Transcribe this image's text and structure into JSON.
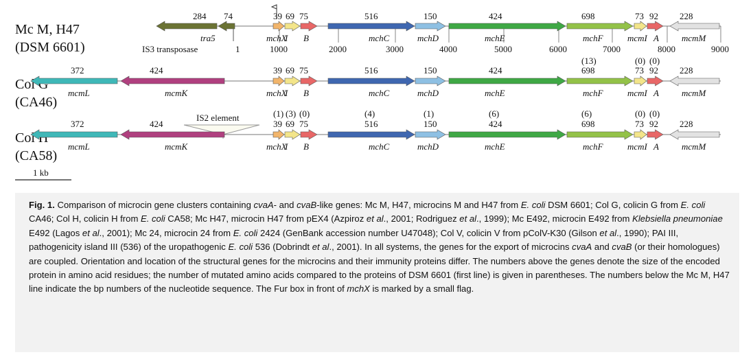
{
  "rows": [
    {
      "name": "Mc M, H47",
      "strain": "(DSM 6601)",
      "genes": [
        {
          "label": "tra5",
          "size": "284",
          "mut": ""
        },
        {
          "label": "",
          "size": "74",
          "mut": ""
        },
        {
          "label": "mchX",
          "size": "39",
          "mut": ""
        },
        {
          "label": "I",
          "size": "69",
          "mut": ""
        },
        {
          "label": "B",
          "size": "75",
          "mut": ""
        },
        {
          "label": "mchC",
          "size": "516",
          "mut": ""
        },
        {
          "label": "mchD",
          "size": "150",
          "mut": ""
        },
        {
          "label": "mchE",
          "size": "424",
          "mut": ""
        },
        {
          "label": "mchF",
          "size": "698",
          "mut": ""
        },
        {
          "label": "mcmI",
          "size": "73",
          "mut": ""
        },
        {
          "label": "A",
          "size": "92",
          "mut": ""
        },
        {
          "label": "mcmM",
          "size": "228",
          "mut": ""
        }
      ],
      "annotations": {
        "is3": "IS3 transposase",
        "one": "1"
      },
      "axis_ticks": [
        "1000",
        "2000",
        "3000",
        "4000",
        "5000",
        "6000",
        "7000",
        "8000",
        "9000"
      ]
    },
    {
      "name": "Col G",
      "strain": "(CA46)",
      "genes": [
        {
          "label": "mcmL",
          "size": "372",
          "mut": ""
        },
        {
          "label": "mcmK",
          "size": "424",
          "mut": ""
        },
        {
          "label": "mchX",
          "size": "39",
          "mut": ""
        },
        {
          "label": "I",
          "size": "69",
          "mut": ""
        },
        {
          "label": "B",
          "size": "75",
          "mut": ""
        },
        {
          "label": "mchC",
          "size": "516",
          "mut": ""
        },
        {
          "label": "mchD",
          "size": "150",
          "mut": ""
        },
        {
          "label": "mchE",
          "size": "424",
          "mut": ""
        },
        {
          "label": "mchF",
          "size": "698",
          "mut": "(13)"
        },
        {
          "label": "mcmI",
          "size": "73",
          "mut": "(0)"
        },
        {
          "label": "A",
          "size": "92",
          "mut": "(0)"
        },
        {
          "label": "mcmM",
          "size": "228",
          "mut": ""
        }
      ]
    },
    {
      "name": "Col H",
      "strain": "(CA58)",
      "genes": [
        {
          "label": "mcmL",
          "size": "372",
          "mut": ""
        },
        {
          "label": "mcmK",
          "size": "424",
          "mut": ""
        },
        {
          "label": "mchX",
          "size": "39",
          "mut": "(1)"
        },
        {
          "label": "I",
          "size": "69",
          "mut": "(3)"
        },
        {
          "label": "B",
          "size": "75",
          "mut": "(0)"
        },
        {
          "label": "mchC",
          "size": "516",
          "mut": "(4)"
        },
        {
          "label": "mchD",
          "size": "150",
          "mut": "(1)"
        },
        {
          "label": "mchE",
          "size": "424",
          "mut": "(6)"
        },
        {
          "label": "mchF",
          "size": "698",
          "mut": "(6)"
        },
        {
          "label": "mcmI",
          "size": "73",
          "mut": "(0)"
        },
        {
          "label": "A",
          "size": "92",
          "mut": "(0)"
        },
        {
          "label": "mcmM",
          "size": "228",
          "mut": ""
        }
      ],
      "annotations": {
        "is2": "IS2 element"
      }
    }
  ],
  "scale_bar": "1 kb",
  "colors": {
    "tra5": "#6b7334",
    "mcmL": "#3fb8b8",
    "mcmK": "#b0407f",
    "mchX": "#f2b56b",
    "I": "#f3e58a",
    "B": "#e86767",
    "mchC": "#3f67b0",
    "mchD": "#8ec0e3",
    "mchE": "#3fa845",
    "mchF": "#93c248",
    "mcmI": "#f3e58a",
    "A": "#e86767",
    "mcmM": "#e2e2e2"
  },
  "caption": {
    "fig_label": "Fig. 1.",
    "segments": [
      {
        "t": " Comparison of microcin gene clusters containing "
      },
      {
        "t": "cvaA",
        "i": true
      },
      {
        "t": "- and "
      },
      {
        "t": "cvaB",
        "i": true
      },
      {
        "t": "-like genes: Mc M, H47, microcins M and H47 from "
      },
      {
        "t": "E. coli",
        "i": true
      },
      {
        "t": " DSM 6601; Col G, colicin G from "
      },
      {
        "t": "E. coli",
        "i": true
      },
      {
        "t": " CA46; Col H, colicin H from "
      },
      {
        "t": "E. coli",
        "i": true
      },
      {
        "t": " CA58; Mc H47, microcin H47 from pEX4 (Azpiroz "
      },
      {
        "t": "et al",
        "i": true
      },
      {
        "t": "., 2001; Rodriguez "
      },
      {
        "t": "et al",
        "i": true
      },
      {
        "t": "., 1999); Mc E492, microcin E492 from "
      },
      {
        "t": "Klebsiella pneumoniae",
        "i": true
      },
      {
        "t": " E492 (Lagos "
      },
      {
        "t": "et al",
        "i": true
      },
      {
        "t": "., 2001); Mc 24, microcin 24 from "
      },
      {
        "t": "E. coli",
        "i": true
      },
      {
        "t": " 2424 (GenBank accession number U47048); Col V, colicin V from pColV-K30 (Gilson "
      },
      {
        "t": "et al",
        "i": true
      },
      {
        "t": "., 1990); PAI III, pathogenicity island III (536) of the uropathogenic "
      },
      {
        "t": "E. coli",
        "i": true
      },
      {
        "t": " 536 (Dobrindt "
      },
      {
        "t": "et al",
        "i": true
      },
      {
        "t": "., 2001). In all systems, the genes for the export of microcins "
      },
      {
        "t": "cvaA",
        "i": true
      },
      {
        "t": " and "
      },
      {
        "t": "cvaB",
        "i": true
      },
      {
        "t": " (or their homologues) are coupled. Orientation and location of the structural genes for the microcins and their immunity proteins differ. The numbers above the genes denote the size of the encoded protein in amino acid residues; the number of mutated amino acids compared to the proteins of DSM 6601 (first line) is given in parentheses. The numbers below the Mc M, H47 line indicate the bp numbers of the nucleotide sequence. The Fur box in front of "
      },
      {
        "t": "mchX",
        "i": true
      },
      {
        "t": " is marked by a small flag."
      }
    ]
  }
}
